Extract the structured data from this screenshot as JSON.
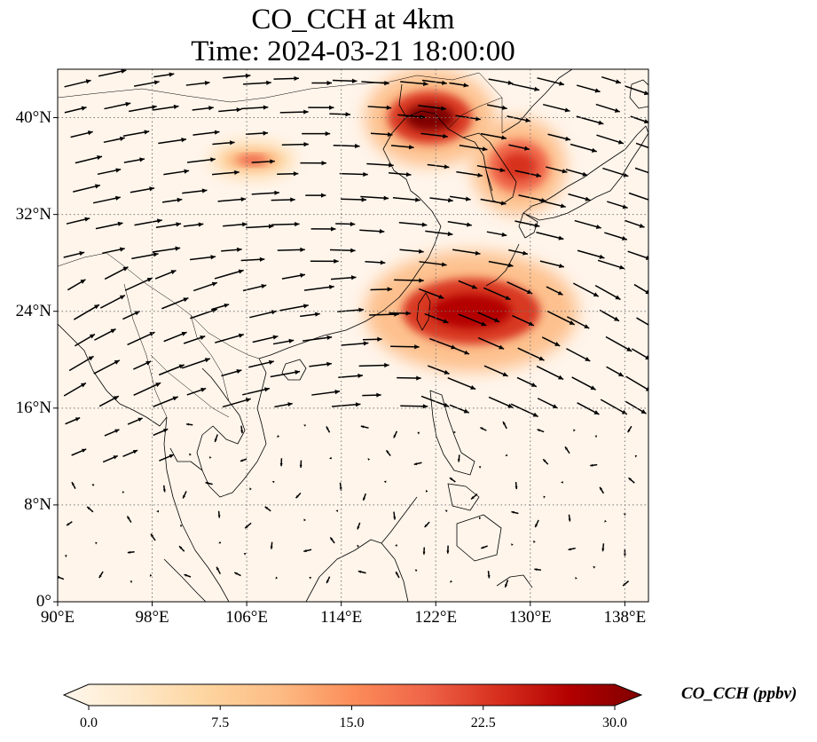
{
  "title": {
    "line1": "CO_CCH at 4km",
    "line2": "Time: 2024-03-21 18:00:00"
  },
  "map": {
    "lon_range": [
      90,
      140
    ],
    "lat_range": [
      0,
      44
    ],
    "lon_ticks": [
      "90°E",
      "98°E",
      "106°E",
      "114°E",
      "122°E",
      "130°E",
      "138°E"
    ],
    "lon_tick_values": [
      90,
      98,
      106,
      114,
      122,
      130,
      138
    ],
    "lat_ticks": [
      "0°",
      "8°N",
      "16°N",
      "24°N",
      "32°N",
      "40°N"
    ],
    "lat_tick_values": [
      0,
      8,
      16,
      24,
      32,
      40
    ],
    "gridlines": "dotted",
    "background_color": "#fff5eb",
    "concentration_plumes": [
      {
        "region": "northeast-china",
        "lon_range": [
          116,
          127
        ],
        "lat_range": [
          36,
          44
        ],
        "peak_ppbv": 30
      },
      {
        "region": "korea-japan",
        "lon_range": [
          125,
          133
        ],
        "lat_range": [
          32,
          40
        ],
        "peak_ppbv": 24
      },
      {
        "region": "north-china-plain",
        "lon_range": [
          103,
          110
        ],
        "lat_range": [
          35,
          38
        ],
        "peak_ppbv": 17
      },
      {
        "region": "east-china-sea-taiwan",
        "lon_range": [
          116,
          134
        ],
        "lat_range": [
          19,
          29
        ],
        "peak_ppbv": 28
      }
    ]
  },
  "colorbar": {
    "label": "CO_CCH (ppbv)",
    "range": [
      0,
      30
    ],
    "ticks": [
      "0.0",
      "7.5",
      "15.0",
      "22.5",
      "30.0"
    ],
    "tick_values": [
      0,
      7.5,
      15,
      22.5,
      30
    ],
    "colormap": "OrRd",
    "colors": [
      "#fff7ec",
      "#fee8c8",
      "#fdd49e",
      "#fdbb84",
      "#fc8d59",
      "#ef6548",
      "#d7301f",
      "#b30000",
      "#7f0000"
    ],
    "extend": "both"
  }
}
